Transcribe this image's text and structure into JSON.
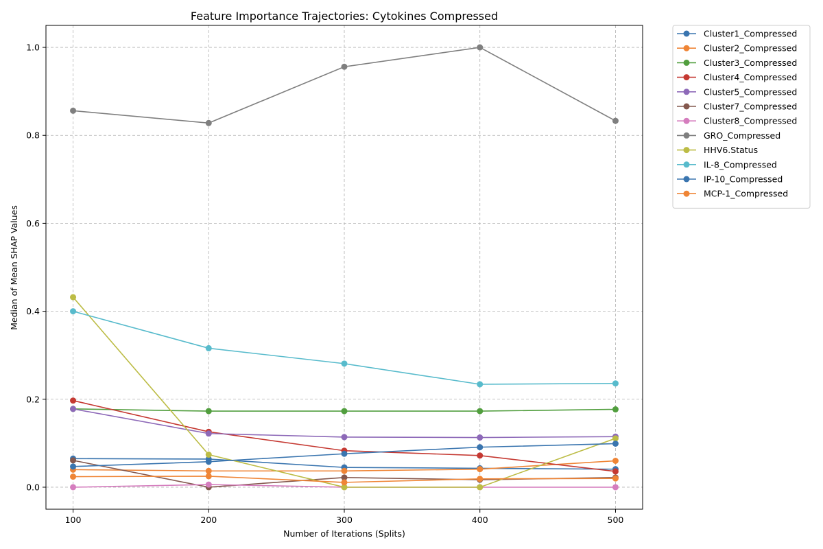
{
  "chart_data": {
    "type": "line",
    "title": "Feature Importance Trajectories: Cytokines Compressed",
    "xlabel": "Number of Iterations (Splits)",
    "ylabel": "Median of Mean SHAP Values",
    "x": [
      100,
      200,
      300,
      400,
      500
    ],
    "xticks": [
      "100",
      "200",
      "300",
      "400",
      "500"
    ],
    "yticks": [
      "0.0",
      "0.2",
      "0.4",
      "0.6",
      "0.8",
      "1.0"
    ],
    "xlim": [
      80,
      520
    ],
    "ylim": [
      -0.05,
      1.05
    ],
    "grid": true,
    "legend_position": "outside-top-right",
    "series": [
      {
        "name": "Cluster1_Compressed",
        "color": "#3a75af",
        "values": [
          0.065,
          0.064,
          0.045,
          0.043,
          0.041
        ]
      },
      {
        "name": "Cluster2_Compressed",
        "color": "#ef8536",
        "values": [
          0.04,
          0.037,
          0.037,
          0.041,
          0.06
        ]
      },
      {
        "name": "Cluster3_Compressed",
        "color": "#519e3e",
        "values": [
          0.178,
          0.173,
          0.173,
          0.173,
          0.177
        ]
      },
      {
        "name": "Cluster4_Compressed",
        "color": "#c53932",
        "values": [
          0.197,
          0.126,
          0.083,
          0.072,
          0.036
        ]
      },
      {
        "name": "Cluster5_Compressed",
        "color": "#8d69b8",
        "values": [
          0.178,
          0.122,
          0.114,
          0.113,
          0.115
        ]
      },
      {
        "name": "Cluster7_Compressed",
        "color": "#84584e",
        "values": [
          0.061,
          0.0,
          0.022,
          0.017,
          0.022
        ]
      },
      {
        "name": "Cluster8_Compressed",
        "color": "#d57dbe",
        "values": [
          0.0,
          0.006,
          0.0,
          0.0,
          0.0
        ]
      },
      {
        "name": "GRO_Compressed",
        "color": "#7f7f7f",
        "values": [
          0.856,
          0.828,
          0.956,
          1.0,
          0.833
        ]
      },
      {
        "name": "HHV6.Status",
        "color": "#bcbc45",
        "values": [
          0.432,
          0.074,
          0.0,
          0.0,
          0.111
        ]
      },
      {
        "name": "IL-8_Compressed",
        "color": "#58bbcc",
        "values": [
          0.4,
          0.316,
          0.281,
          0.234,
          0.236
        ]
      },
      {
        "name": "IP-10_Compressed",
        "color": "#3a75af",
        "values": [
          0.047,
          0.058,
          0.076,
          0.091,
          0.099
        ]
      },
      {
        "name": "MCP-1_Compressed",
        "color": "#ef8536",
        "values": [
          0.024,
          0.025,
          0.011,
          0.019,
          0.02
        ]
      }
    ]
  }
}
